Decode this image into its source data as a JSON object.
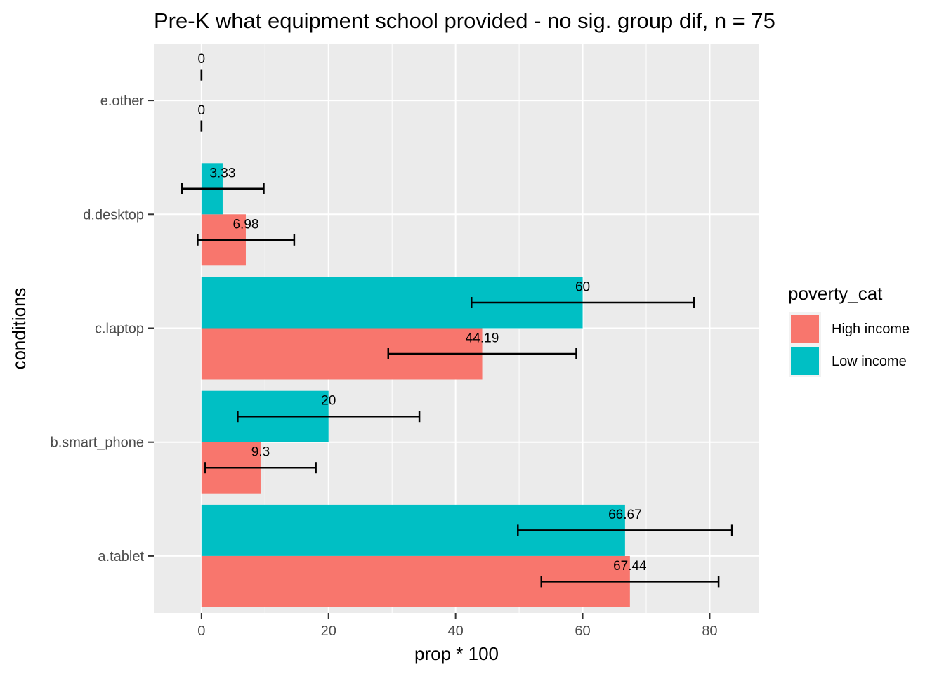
{
  "chart_data": {
    "type": "bar",
    "orientation": "horizontal",
    "title": "Pre-K what equipment school provided - no sig. group dif, n = 75",
    "xlabel": "prop * 100",
    "ylabel": "conditions",
    "categories": [
      "a.tablet",
      "b.smart_phone",
      "c.laptop",
      "d.desktop",
      "e.other"
    ],
    "x_ticks": [
      0,
      20,
      40,
      60,
      80
    ],
    "xlim": [
      -7.5,
      87.8
    ],
    "legend": {
      "title": "poverty_cat",
      "position": "right"
    },
    "grid": true,
    "series": [
      {
        "name": "High income",
        "color": "#F8766D",
        "values": [
          67.44,
          9.3,
          44.19,
          6.98,
          0
        ],
        "labels": [
          "67.44",
          "9.3",
          "44.19",
          "6.98",
          "0"
        ],
        "error_low": [
          53.5,
          0.6,
          29.4,
          -0.6,
          0
        ],
        "error_high": [
          81.4,
          18.0,
          59.0,
          14.6,
          0
        ]
      },
      {
        "name": "Low income",
        "color": "#00BFC4",
        "values": [
          66.67,
          20,
          60,
          3.33,
          0
        ],
        "labels": [
          "66.67",
          "20",
          "60",
          "3.33",
          "0"
        ],
        "error_low": [
          49.8,
          5.7,
          42.5,
          -3.1,
          0
        ],
        "error_high": [
          83.5,
          34.3,
          77.5,
          9.8,
          0
        ]
      }
    ]
  }
}
